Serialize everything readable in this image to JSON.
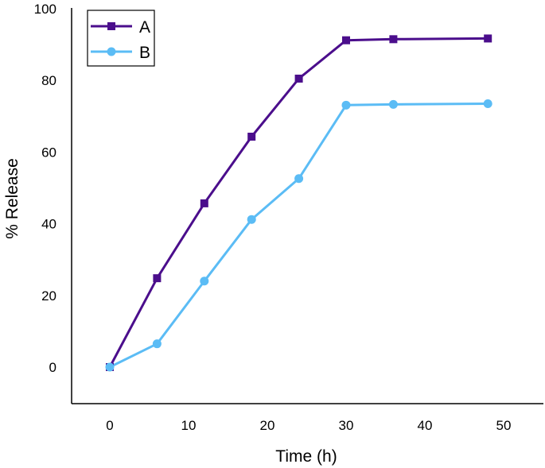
{
  "chart_data": {
    "type": "line",
    "title": "",
    "xlabel": "Time (h)",
    "ylabel": "% Release",
    "xlim": [
      -5,
      55
    ],
    "ylim": [
      -10,
      100
    ],
    "xticks": [
      0,
      10,
      20,
      30,
      40,
      50
    ],
    "yticks": [
      0,
      20,
      40,
      60,
      80,
      100
    ],
    "grid": false,
    "legend_position": "top-left",
    "x": [
      0,
      6,
      12,
      18,
      24,
      30,
      36,
      48
    ],
    "series": [
      {
        "name": "A",
        "color": "#4b0e8c",
        "marker": "square",
        "values": [
          0,
          24.8,
          45.7,
          64.3,
          80.5,
          91.2,
          91.5,
          91.7
        ]
      },
      {
        "name": "B",
        "color": "#5bbcf5",
        "marker": "circle",
        "values": [
          0,
          6.5,
          24.0,
          41.2,
          52.6,
          73.1,
          73.3,
          73.5
        ]
      }
    ]
  }
}
